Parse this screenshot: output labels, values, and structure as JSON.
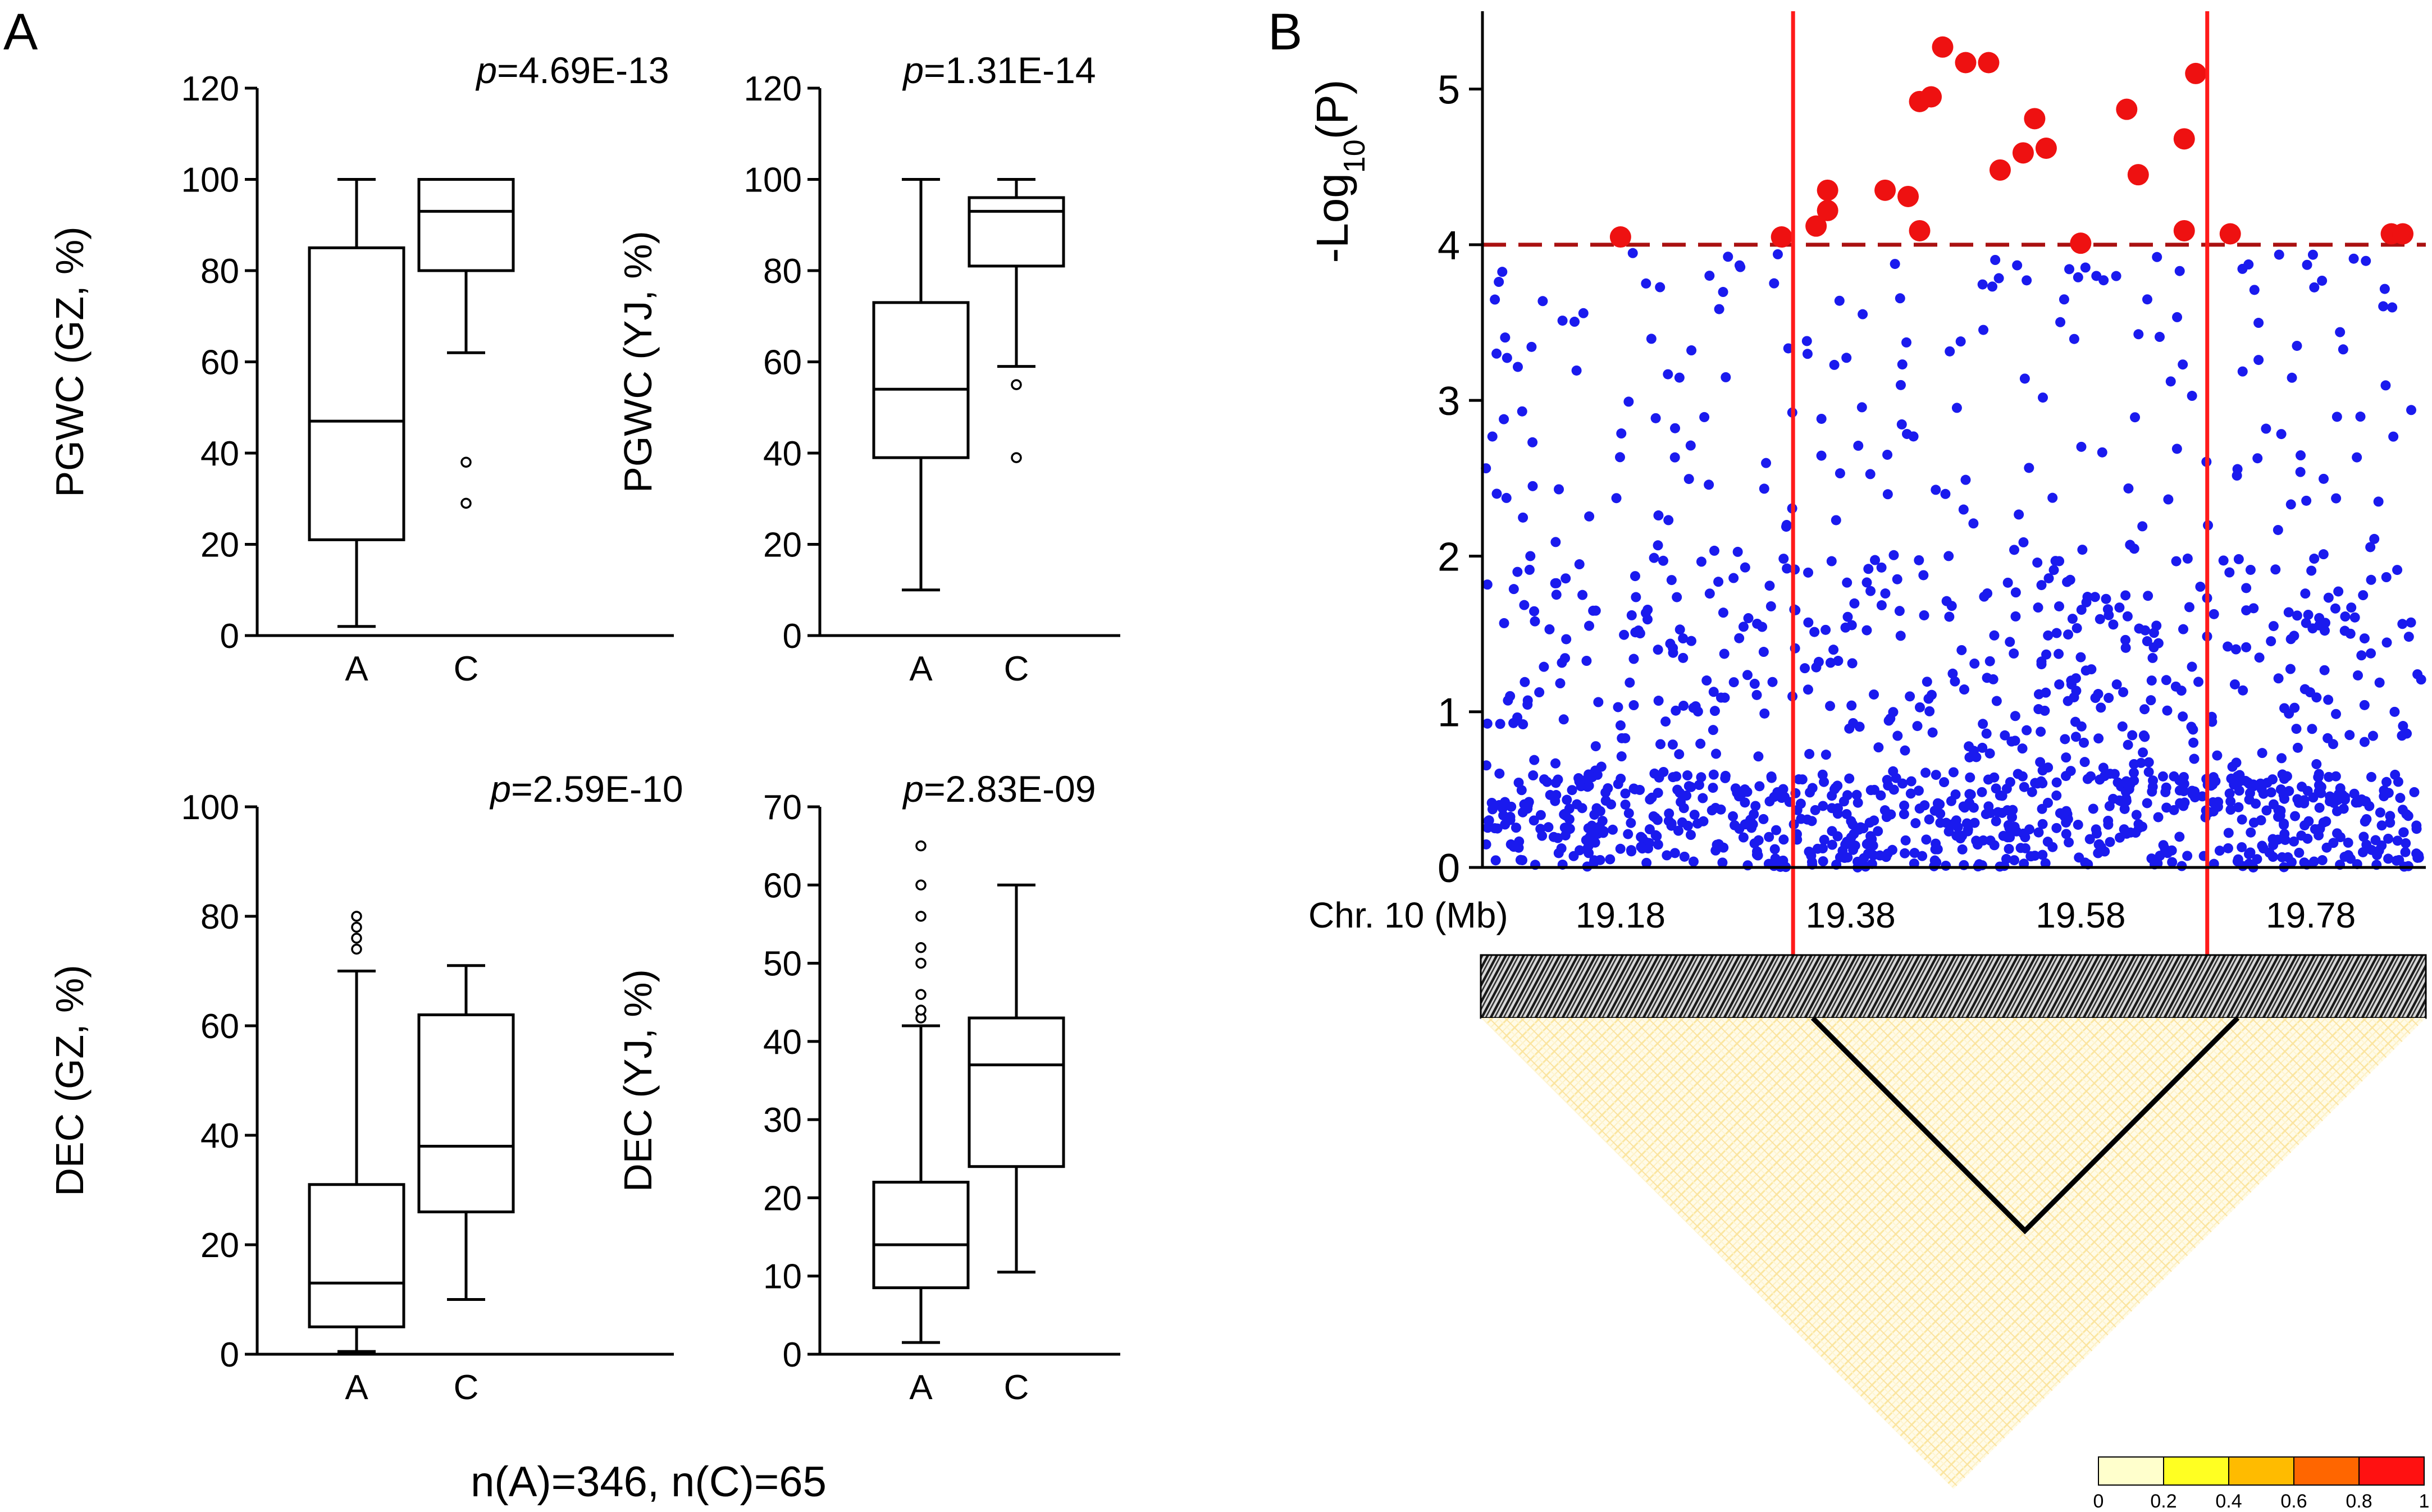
{
  "figure": {
    "panel_a_label": "A",
    "panel_b_label": "B",
    "sample_note": "n(A)=346, n(C)=65"
  },
  "chart_data": [
    {
      "id": "pgwc-gz",
      "type": "box",
      "ylabel": "PGWC (GZ, %)",
      "p_prefix": "p",
      "p_text": "=4.69E-13",
      "ylim": [
        0,
        120
      ],
      "yticks": [
        0,
        20,
        40,
        60,
        80,
        100,
        120
      ],
      "categories": [
        "A",
        "C"
      ],
      "boxes": [
        {
          "name": "A",
          "whisker_low": 2,
          "q1": 21,
          "median": 47,
          "q3": 85,
          "whisker_high": 100,
          "outliers": []
        },
        {
          "name": "C",
          "whisker_low": 62,
          "q1": 80,
          "median": 93,
          "q3": 100,
          "whisker_high": 100,
          "outliers": [
            38,
            29
          ]
        }
      ]
    },
    {
      "id": "pgwc-yj",
      "type": "box",
      "ylabel": "PGWC (YJ, %)",
      "p_prefix": "p",
      "p_text": "=1.31E-14",
      "ylim": [
        0,
        120
      ],
      "yticks": [
        0,
        20,
        40,
        60,
        80,
        100,
        120
      ],
      "categories": [
        "A",
        "C"
      ],
      "boxes": [
        {
          "name": "A",
          "whisker_low": 10,
          "q1": 39,
          "median": 54,
          "q3": 73,
          "whisker_high": 100,
          "outliers": []
        },
        {
          "name": "C",
          "whisker_low": 59,
          "q1": 81,
          "median": 93,
          "q3": 96,
          "whisker_high": 100,
          "outliers": [
            55,
            39
          ]
        }
      ]
    },
    {
      "id": "dec-gz",
      "type": "box",
      "ylabel": "DEC (GZ, %)",
      "p_prefix": "p",
      "p_text": "=2.59E-10",
      "ylim": [
        0,
        100
      ],
      "yticks": [
        0,
        20,
        40,
        60,
        80,
        100
      ],
      "categories": [
        "A",
        "C"
      ],
      "boxes": [
        {
          "name": "A",
          "whisker_low": 0.5,
          "q1": 5,
          "median": 13,
          "q3": 31,
          "whisker_high": 70,
          "outliers": [
            74,
            76,
            78,
            80
          ]
        },
        {
          "name": "C",
          "whisker_low": 10,
          "q1": 26,
          "median": 38,
          "q3": 62,
          "whisker_high": 71,
          "outliers": []
        }
      ]
    },
    {
      "id": "dec-yj",
      "type": "box",
      "ylabel": "DEC (YJ, %)",
      "p_prefix": "p",
      "p_text": "=2.83E-09",
      "ylim": [
        0,
        70
      ],
      "yticks": [
        0,
        10,
        20,
        30,
        40,
        50,
        60,
        70
      ],
      "categories": [
        "A",
        "C"
      ],
      "boxes": [
        {
          "name": "A",
          "whisker_low": 1.5,
          "q1": 8.5,
          "median": 14,
          "q3": 22,
          "whisker_high": 42,
          "outliers": [
            43,
            44,
            46,
            50,
            52,
            56,
            60,
            65
          ]
        },
        {
          "name": "C",
          "whisker_low": 10.5,
          "q1": 24,
          "median": 37,
          "q3": 43,
          "whisker_high": 60,
          "outliers": []
        }
      ]
    },
    {
      "id": "manhattan",
      "type": "scatter",
      "ylabel_main": "-Log",
      "ylabel_sub": "10",
      "ylabel_tail": "(P)",
      "xlabel": "Chr. 10 (Mb)",
      "ylim": [
        0,
        5.5
      ],
      "xlim": [
        19.06,
        19.88
      ],
      "yticks": [
        0,
        1,
        2,
        3,
        4,
        5
      ],
      "xticks": [
        "19.18",
        "19.38",
        "19.58",
        "19.78"
      ],
      "xtick_values": [
        19.18,
        19.38,
        19.58,
        19.78
      ],
      "threshold": 4,
      "region": [
        19.33,
        19.69
      ],
      "significant_color": "#ee1111",
      "background_color": "#1a1aee",
      "threshold_color": "#aa1111",
      "region_line_color": "#ff1a1a",
      "significant_points": [
        [
          19.18,
          4.05
        ],
        [
          19.32,
          4.05
        ],
        [
          19.35,
          4.12
        ],
        [
          19.36,
          4.22
        ],
        [
          19.36,
          4.35
        ],
        [
          19.41,
          4.35
        ],
        [
          19.43,
          4.31
        ],
        [
          19.44,
          4.09
        ],
        [
          19.44,
          4.92
        ],
        [
          19.45,
          4.95
        ],
        [
          19.46,
          5.27
        ],
        [
          19.48,
          5.17
        ],
        [
          19.5,
          5.17
        ],
        [
          19.51,
          4.48
        ],
        [
          19.53,
          4.59
        ],
        [
          19.54,
          4.81
        ],
        [
          19.55,
          4.62
        ],
        [
          19.58,
          4.01
        ],
        [
          19.62,
          4.87
        ],
        [
          19.63,
          4.45
        ],
        [
          19.67,
          4.09
        ],
        [
          19.67,
          4.68
        ],
        [
          19.68,
          5.1
        ],
        [
          19.71,
          4.07
        ],
        [
          19.85,
          4.07
        ],
        [
          19.86,
          4.07
        ]
      ],
      "background_point_count": 1300,
      "background_seed": 7
    },
    {
      "id": "ld-heatmap",
      "type": "heatmap",
      "legend_ticks": [
        "0",
        "0.2",
        "0.4",
        "0.6",
        "0.8",
        "1"
      ],
      "legend_colors": [
        "#ffffcc",
        "#ffff22",
        "#ffbb00",
        "#ff6600",
        "#ff1111"
      ]
    }
  ]
}
